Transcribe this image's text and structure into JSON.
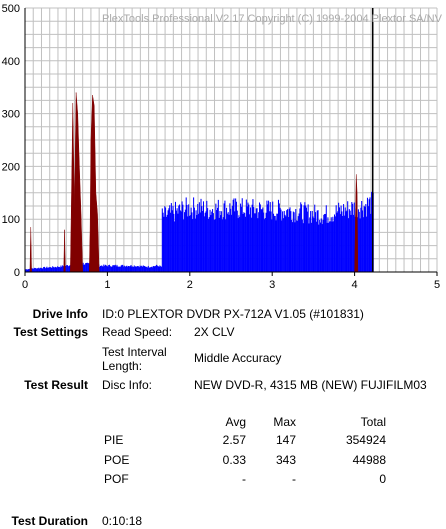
{
  "chart_data": {
    "type": "bar",
    "title": "PlexTools Professional V2.17 Copyright (C) 1999-2004 Plextor SA/NV",
    "xlim": [
      0,
      5
    ],
    "ylim": [
      0,
      500
    ],
    "x_ticks": [
      "0",
      "1",
      "2",
      "3",
      "4",
      "5"
    ],
    "y_ticks": [
      "0",
      "100",
      "200",
      "300",
      "400",
      "500"
    ],
    "grid": true,
    "colors": {
      "pie": "#0000ff",
      "poe": "#800000",
      "end_marker": "#000000",
      "grid": "#c0c0c0"
    },
    "end_marker_x": 4.22,
    "series": [
      {
        "name": "PIE",
        "x_step": 0.01,
        "points": [
          [
            0.0,
            5
          ],
          [
            0.1,
            7
          ],
          [
            0.2,
            8
          ],
          [
            0.3,
            9
          ],
          [
            0.4,
            10
          ],
          [
            0.5,
            12
          ],
          [
            0.6,
            15
          ],
          [
            0.7,
            16
          ],
          [
            0.8,
            14
          ],
          [
            0.9,
            12
          ],
          [
            1.0,
            12
          ],
          [
            1.1,
            12
          ],
          [
            1.2,
            12
          ],
          [
            1.3,
            12
          ],
          [
            1.4,
            11
          ],
          [
            1.5,
            10
          ],
          [
            1.6,
            12
          ],
          [
            1.65,
            10
          ],
          [
            1.66,
            105
          ],
          [
            1.75,
            110
          ],
          [
            1.85,
            115
          ],
          [
            1.95,
            120
          ],
          [
            2.1,
            122
          ],
          [
            2.2,
            118
          ],
          [
            2.4,
            120
          ],
          [
            2.6,
            120
          ],
          [
            2.8,
            118
          ],
          [
            3.0,
            117
          ],
          [
            3.2,
            116
          ],
          [
            3.4,
            112
          ],
          [
            3.6,
            108
          ],
          [
            3.7,
            110
          ],
          [
            3.8,
            115
          ],
          [
            3.9,
            118
          ],
          [
            4.0,
            122
          ],
          [
            4.1,
            125
          ],
          [
            4.2,
            130
          ],
          [
            4.22,
            130
          ]
        ]
      },
      {
        "name": "POE",
        "spikes": [
          [
            0.06,
            0
          ],
          [
            0.07,
            85
          ],
          [
            0.08,
            0
          ],
          [
            0.47,
            0
          ],
          [
            0.48,
            80
          ],
          [
            0.49,
            0
          ],
          [
            0.55,
            0
          ],
          [
            0.56,
            100
          ],
          [
            0.58,
            320
          ],
          [
            0.6,
            120
          ],
          [
            0.62,
            340
          ],
          [
            0.64,
            300
          ],
          [
            0.66,
            200
          ],
          [
            0.68,
            110
          ],
          [
            0.7,
            0
          ],
          [
            0.78,
            0
          ],
          [
            0.79,
            80
          ],
          [
            0.8,
            250
          ],
          [
            0.82,
            335
          ],
          [
            0.84,
            315
          ],
          [
            0.86,
            150
          ],
          [
            0.88,
            110
          ],
          [
            0.9,
            0
          ],
          [
            4.0,
            0
          ],
          [
            4.01,
            100
          ],
          [
            4.02,
            185
          ],
          [
            4.03,
            150
          ],
          [
            4.04,
            0
          ]
        ]
      }
    ]
  },
  "info": {
    "drive_label": "Drive Info",
    "drive_value": "ID:0 PLEXTOR DVDR PX-712A V1.05 (#101831)",
    "settings_label": "Test Settings",
    "read_speed_label": "Read Speed:",
    "read_speed_value": "2X CLV",
    "interval_label_1": "Test Interval",
    "interval_label_2": "Length:",
    "interval_value": "Middle Accuracy",
    "result_label": "Test Result",
    "disc_info_label": "Disc Info:",
    "disc_info_value": "NEW DVD-R, 4315 MB (NEW) FUJIFILM03",
    "duration_label": "Test Duration",
    "duration_value": "0:10:18"
  },
  "stats": {
    "header_avg": "Avg",
    "header_max": "Max",
    "header_total": "Total",
    "rows": [
      {
        "name": "PIE",
        "avg": "2.57",
        "max": "147",
        "total": "354924"
      },
      {
        "name": "POE",
        "avg": "0.33",
        "max": "343",
        "total": "44988"
      },
      {
        "name": "POF",
        "avg": "-",
        "max": "-",
        "total": "0"
      }
    ]
  }
}
